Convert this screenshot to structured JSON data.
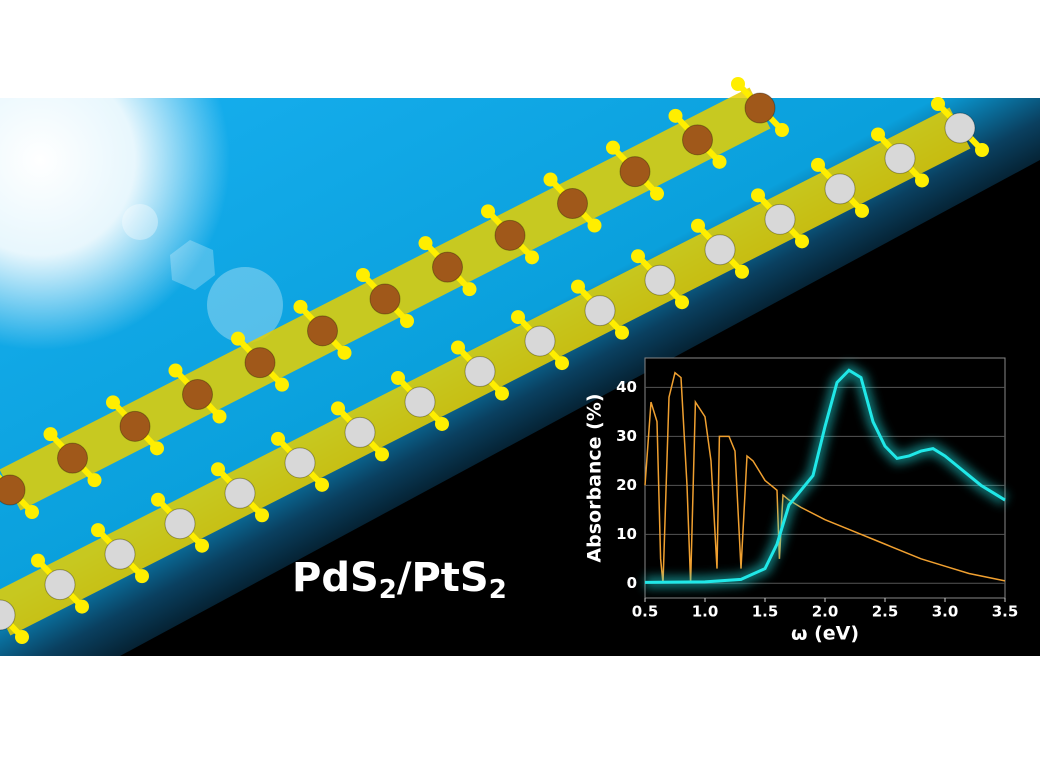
{
  "label_parts": [
    "PdS",
    "2",
    "/PtS",
    "2"
  ],
  "chart_data": {
    "type": "line",
    "xlabel": "ω (eV)",
    "ylabel": "Absorbance (%)",
    "xlim": [
      0.5,
      3.5
    ],
    "ylim": [
      -3,
      46
    ],
    "xticks": [
      0.5,
      {
        "value": 1,
        "label": "1.0"
      },
      1.5,
      {
        "value": 2,
        "label": "2.0"
      },
      2.5,
      {
        "value": 3,
        "label": "3.0"
      },
      3.5
    ],
    "yticks": [
      0,
      10,
      20,
      30,
      40
    ],
    "grid": true,
    "series": [
      {
        "color": "#f0a030",
        "x": [
          0.5,
          0.55,
          0.6,
          0.63,
          0.65,
          0.7,
          0.75,
          0.8,
          0.85,
          0.88,
          0.92,
          1.0,
          1.05,
          1.1,
          1.12,
          1.2,
          1.25,
          1.3,
          1.35,
          1.4,
          1.45,
          1.5,
          1.55,
          1.6,
          1.62,
          1.65,
          1.7,
          1.8,
          2.0,
          2.2,
          2.5,
          2.8,
          3.0,
          3.2,
          3.5
        ],
        "values": [
          20,
          37,
          33,
          5,
          0,
          38,
          43,
          42,
          20,
          0,
          37,
          34,
          25,
          3,
          30,
          30,
          27,
          3,
          26,
          25,
          23,
          21,
          20,
          19,
          5,
          18,
          17,
          15.5,
          13,
          11,
          8,
          5,
          3.5,
          2,
          0.5
        ]
      },
      {
        "color": "#20e8e8",
        "x": [
          0.5,
          1.0,
          1.3,
          1.5,
          1.6,
          1.7,
          1.8,
          1.9,
          2.0,
          2.1,
          2.2,
          2.3,
          2.4,
          2.5,
          2.6,
          2.7,
          2.8,
          2.9,
          3.0,
          3.1,
          3.2,
          3.3,
          3.4,
          3.5
        ],
        "values": [
          0.2,
          0.3,
          0.8,
          3,
          8,
          16,
          19,
          22,
          32,
          41,
          43.5,
          42,
          33,
          28,
          25.5,
          26,
          27,
          27.5,
          26,
          24,
          22,
          20,
          18.5,
          17
        ]
      }
    ]
  }
}
